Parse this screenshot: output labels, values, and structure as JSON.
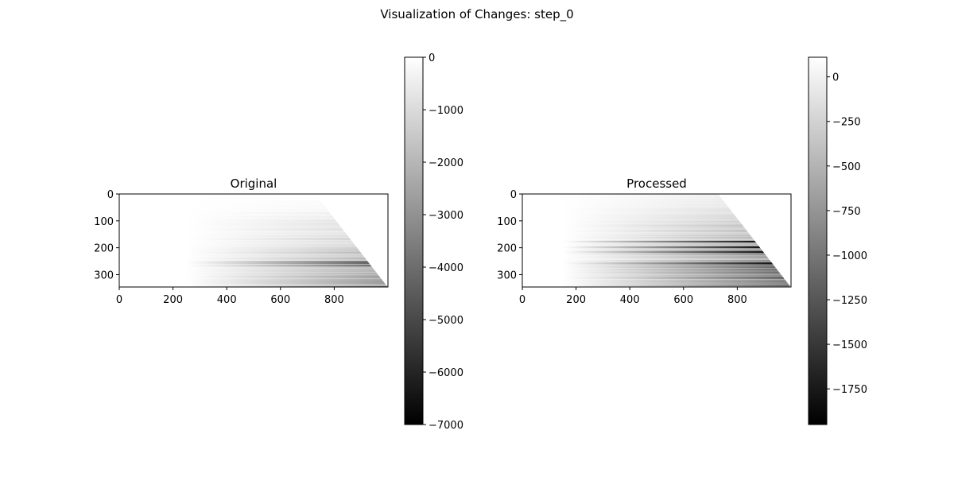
{
  "figure": {
    "suptitle": "Visualization of Changes: step_0"
  },
  "chart_data": [
    {
      "type": "heatmap",
      "title": "Original",
      "colormap": "gray",
      "extent": {
        "x": [
          0,
          1000
        ],
        "y": [
          0,
          346
        ]
      },
      "xticks": [
        0,
        200,
        400,
        600,
        800
      ],
      "yticks": [
        0,
        100,
        200,
        300
      ],
      "colorbar": {
        "vmin": -7000,
        "vmax": 0,
        "ticks": [
          0,
          -1000,
          -2000,
          -3000,
          -4000,
          -5000,
          -6000,
          -7000
        ]
      },
      "pattern": {
        "diagonal_start": [
          730,
          0
        ],
        "diagonal_end": [
          1000,
          346
        ],
        "fade_start_x": 250,
        "darkest_value": -4200,
        "dark_rows": [
          250,
          257,
          265
        ]
      }
    },
    {
      "type": "heatmap",
      "title": "Processed",
      "colormap": "gray",
      "extent": {
        "x": [
          0,
          1000
        ],
        "y": [
          0,
          346
        ]
      },
      "xticks": [
        0,
        200,
        400,
        600,
        800
      ],
      "yticks": [
        0,
        100,
        200,
        300
      ],
      "colorbar": {
        "vmin": -1950,
        "vmax": 110,
        "ticks": [
          0,
          -250,
          -500,
          -750,
          -1000,
          -1250,
          -1500,
          -1750
        ]
      },
      "pattern": {
        "diagonal_start": [
          730,
          0
        ],
        "diagonal_end": [
          1000,
          346
        ],
        "fade_start_x": 150,
        "darkest_value": -1800,
        "dark_rows": [
          176,
          196,
          215,
          257
        ]
      }
    }
  ]
}
